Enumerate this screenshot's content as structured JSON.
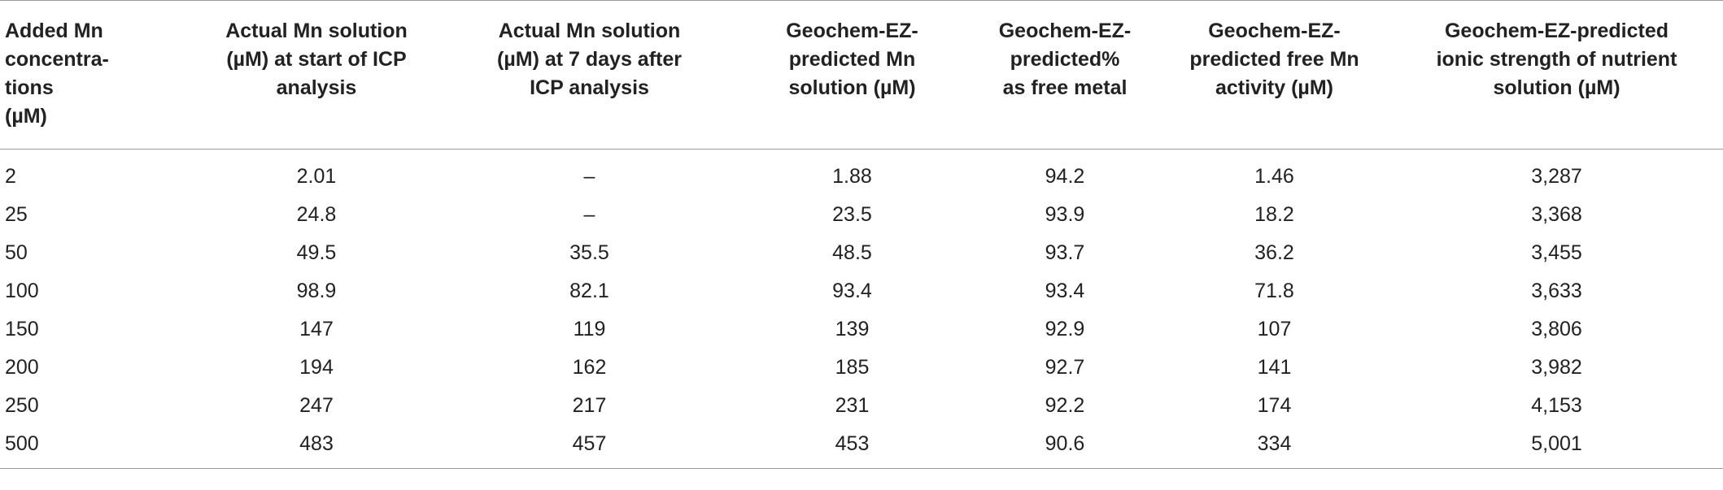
{
  "table": {
    "headers": [
      [
        "Added Mn",
        "concentra-",
        "tions",
        "(µM)"
      ],
      [
        "Actual Mn solution",
        "(µM) at start of ICP",
        "analysis"
      ],
      [
        "Actual Mn solution",
        "(µM) at 7 days after",
        "ICP analysis"
      ],
      [
        "Geochem-EZ-",
        "predicted Mn",
        "solution (µM)"
      ],
      [
        "Geochem-EZ-",
        "predicted%",
        "as free metal"
      ],
      [
        "Geochem-EZ-",
        "predicted free Mn",
        "activity (µM)"
      ],
      [
        "Geochem-EZ-predicted",
        "ionic strength of nutrient",
        "solution (µM)"
      ]
    ],
    "rows": [
      [
        "2",
        "2.01",
        "–",
        "1.88",
        "94.2",
        "1.46",
        "3,287"
      ],
      [
        "25",
        "24.8",
        "–",
        "23.5",
        "93.9",
        "18.2",
        "3,368"
      ],
      [
        "50",
        "49.5",
        "35.5",
        "48.5",
        "93.7",
        "36.2",
        "3,455"
      ],
      [
        "100",
        "98.9",
        "82.1",
        "93.4",
        "93.4",
        "71.8",
        "3,633"
      ],
      [
        "150",
        "147",
        "119",
        "139",
        "92.9",
        "107",
        "3,806"
      ],
      [
        "200",
        "194",
        "162",
        "185",
        "92.7",
        "141",
        "3,982"
      ],
      [
        "250",
        "247",
        "217",
        "231",
        "92.2",
        "174",
        "4,153"
      ],
      [
        "500",
        "483",
        "457",
        "453",
        "90.6",
        "334",
        "5,001"
      ]
    ]
  }
}
